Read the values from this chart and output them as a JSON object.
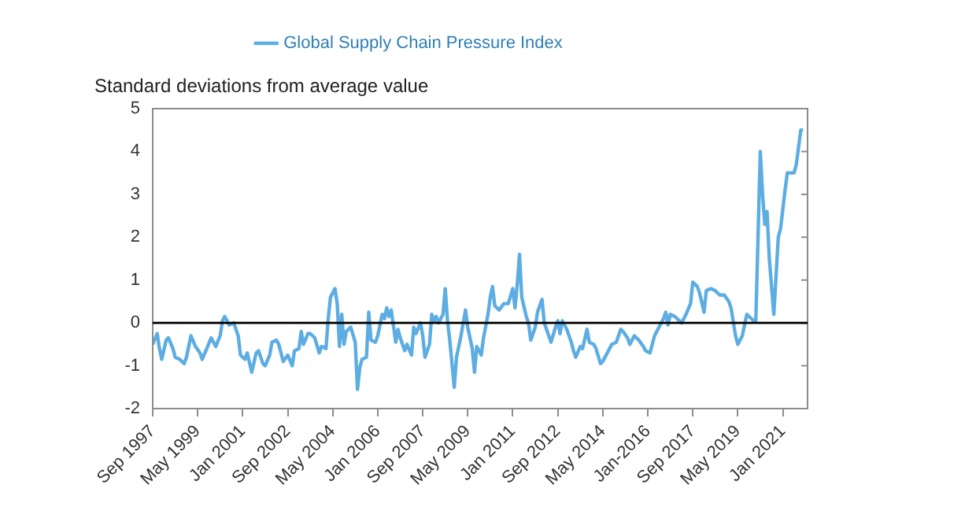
{
  "chart_data": {
    "type": "line",
    "ylabel": "Standard deviations from average value",
    "legend": "top",
    "grid": false,
    "marker": "none",
    "line_style": "solid",
    "xlim": [
      "1997-09",
      "2021-12"
    ],
    "ylim": [
      -2,
      5
    ],
    "yticks": [
      -2,
      -1,
      0,
      1,
      2,
      3,
      4,
      5
    ],
    "xticks": [
      {
        "value": "1997-09",
        "label": "Sep 1997"
      },
      {
        "value": "1999-05",
        "label": "May 1999"
      },
      {
        "value": "2001-01",
        "label": "Jan 2001"
      },
      {
        "value": "2002-09",
        "label": "Sep 2002"
      },
      {
        "value": "2004-05",
        "label": "May 2004"
      },
      {
        "value": "2006-01",
        "label": "Jan 2006"
      },
      {
        "value": "2007-09",
        "label": "Sep 2007"
      },
      {
        "value": "2009-05",
        "label": "May 2009"
      },
      {
        "value": "2011-01",
        "label": "Jan 2011"
      },
      {
        "value": "2012-09",
        "label": "Sep 2012"
      },
      {
        "value": "2014-05",
        "label": "May 2014"
      },
      {
        "value": "2016-01",
        "label": "Jan-2016"
      },
      {
        "value": "2017-09",
        "label": "Sep 2017"
      },
      {
        "value": "2019-05",
        "label": "May 2019"
      },
      {
        "value": "2021-01",
        "label": "Jan 2021"
      }
    ],
    "ref_lines": [
      {
        "axis": "y",
        "value": 0,
        "color": "#000000"
      }
    ],
    "series": [
      {
        "name": "Global Supply Chain Pressure Index",
        "color": "#5dade2",
        "x": [
          "1997-09",
          "1997-11",
          "1997-12",
          "1998-01",
          "1998-03",
          "1998-04",
          "1998-06",
          "1998-07",
          "1998-09",
          "1998-11",
          "1998-12",
          "1999-02",
          "1999-04",
          "1999-06",
          "1999-07",
          "1999-09",
          "1999-11",
          "2000-01",
          "2000-03",
          "2000-04",
          "2000-05",
          "2000-07",
          "2000-09",
          "2000-11",
          "2000-12",
          "2001-02",
          "2001-03",
          "2001-05",
          "2001-07",
          "2001-08",
          "2001-10",
          "2001-11",
          "2002-01",
          "2002-02",
          "2002-04",
          "2002-05",
          "2002-07",
          "2002-09",
          "2002-11",
          "2002-12",
          "2003-02",
          "2003-03",
          "2003-04",
          "2003-06",
          "2003-07",
          "2003-09",
          "2003-11",
          "2003-12",
          "2004-02",
          "2004-03",
          "2004-04",
          "2004-06",
          "2004-07",
          "2004-08",
          "2004-09",
          "2004-10",
          "2004-11",
          "2005-01",
          "2005-03",
          "2005-04",
          "2005-05",
          "2005-06",
          "2005-08",
          "2005-09",
          "2005-10",
          "2005-12",
          "2006-01",
          "2006-03",
          "2006-04",
          "2006-05",
          "2006-06",
          "2006-07",
          "2006-09",
          "2006-10",
          "2006-11",
          "2007-01",
          "2007-02",
          "2007-04",
          "2007-05",
          "2007-06",
          "2007-08",
          "2007-09",
          "2007-10",
          "2007-12",
          "2008-01",
          "2008-02",
          "2008-03",
          "2008-04",
          "2008-06",
          "2008-07",
          "2008-08",
          "2008-09",
          "2008-11",
          "2008-12",
          "2009-02",
          "2009-04",
          "2009-05",
          "2009-07",
          "2009-08",
          "2009-09",
          "2009-11",
          "2009-12",
          "2010-02",
          "2010-03",
          "2010-04",
          "2010-05",
          "2010-07",
          "2010-09",
          "2010-11",
          "2011-01",
          "2011-02",
          "2011-03",
          "2011-04",
          "2011-05",
          "2011-07",
          "2011-08",
          "2011-09",
          "2011-11",
          "2011-12",
          "2012-02",
          "2012-03",
          "2012-04",
          "2012-06",
          "2012-08",
          "2012-09",
          "2012-10",
          "2012-11",
          "2013-01",
          "2013-03",
          "2013-04",
          "2013-05",
          "2013-07",
          "2013-08",
          "2013-10",
          "2013-11",
          "2014-01",
          "2014-02",
          "2014-04",
          "2014-05",
          "2014-07",
          "2014-09",
          "2014-11",
          "2015-01",
          "2015-02",
          "2015-04",
          "2015-05",
          "2015-07",
          "2015-09",
          "2015-11",
          "2015-12",
          "2016-02",
          "2016-04",
          "2016-06",
          "2016-08",
          "2016-09",
          "2016-10",
          "2016-11",
          "2017-01",
          "2017-02",
          "2017-04",
          "2017-06",
          "2017-08",
          "2017-09",
          "2017-11",
          "2017-12",
          "2018-02",
          "2018-03",
          "2018-05",
          "2018-07",
          "2018-09",
          "2018-11",
          "2019-01",
          "2019-02",
          "2019-04",
          "2019-05",
          "2019-07",
          "2019-09",
          "2019-10",
          "2019-12",
          "2020-01",
          "2020-03",
          "2020-04",
          "2020-05",
          "2020-06",
          "2020-07",
          "2020-09",
          "2020-11",
          "2020-12",
          "2021-02",
          "2021-03",
          "2021-06",
          "2021-07",
          "2021-09",
          "2021-10"
        ],
        "values": [
          -0.5,
          -0.25,
          -0.6,
          -0.85,
          -0.4,
          -0.35,
          -0.6,
          -0.8,
          -0.85,
          -0.95,
          -0.8,
          -0.3,
          -0.55,
          -0.7,
          -0.85,
          -0.6,
          -0.35,
          -0.55,
          -0.3,
          0.05,
          0.15,
          -0.05,
          0.0,
          -0.3,
          -0.75,
          -0.85,
          -0.7,
          -1.15,
          -0.7,
          -0.65,
          -0.95,
          -1.0,
          -0.75,
          -0.45,
          -0.4,
          -0.5,
          -0.9,
          -0.75,
          -1.0,
          -0.65,
          -0.6,
          -0.2,
          -0.5,
          -0.25,
          -0.25,
          -0.35,
          -0.7,
          -0.55,
          -0.6,
          0.1,
          0.6,
          0.8,
          0.45,
          -0.55,
          0.2,
          -0.5,
          -0.2,
          -0.1,
          -0.45,
          -1.55,
          -1.05,
          -0.85,
          -0.8,
          0.25,
          -0.4,
          -0.45,
          -0.3,
          0.2,
          0.1,
          0.35,
          0.15,
          0.3,
          -0.45,
          -0.15,
          -0.35,
          -0.65,
          -0.5,
          -0.75,
          -0.1,
          -0.25,
          0.0,
          -0.3,
          -0.8,
          -0.5,
          0.2,
          0.05,
          0.15,
          0.0,
          0.2,
          0.8,
          0.05,
          -0.4,
          -1.5,
          -0.8,
          -0.3,
          0.3,
          -0.1,
          -0.6,
          -1.15,
          -0.55,
          -0.75,
          -0.35,
          0.2,
          0.6,
          0.85,
          0.4,
          0.3,
          0.45,
          0.45,
          0.8,
          0.35,
          0.9,
          1.6,
          0.6,
          0.15,
          0.0,
          -0.4,
          -0.1,
          0.25,
          0.55,
          0.0,
          -0.15,
          -0.45,
          -0.1,
          0.05,
          -0.25,
          0.05,
          -0.15,
          -0.45,
          -0.65,
          -0.8,
          -0.55,
          -0.6,
          -0.15,
          -0.45,
          -0.5,
          -0.6,
          -0.95,
          -0.9,
          -0.7,
          -0.5,
          -0.45,
          -0.15,
          -0.2,
          -0.35,
          -0.5,
          -0.3,
          -0.4,
          -0.55,
          -0.65,
          -0.7,
          -0.3,
          -0.1,
          0.1,
          0.25,
          -0.05,
          0.2,
          0.15,
          0.1,
          0.0,
          0.2,
          0.45,
          0.95,
          0.85,
          0.7,
          0.25,
          0.75,
          0.8,
          0.75,
          0.65,
          0.65,
          0.5,
          0.35,
          -0.3,
          -0.5,
          -0.3,
          0.2,
          0.15,
          0.05,
          0.05,
          4.0,
          3.0,
          2.3,
          2.6,
          1.5,
          0.2,
          2.0,
          2.2,
          3.1,
          3.5,
          3.5,
          3.7,
          4.5,
          4.5
        ]
      }
    ]
  }
}
